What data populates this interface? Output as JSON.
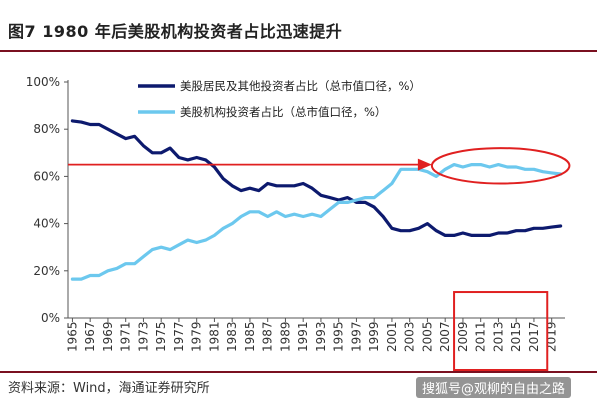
{
  "header": {
    "title": "图7  1980 年后美股机构投资者占比迅速提升"
  },
  "footer": {
    "source": "资料来源：Wind，海通证券研究所",
    "watermark": "搜狐号@观柳的自由之路"
  },
  "colors": {
    "series_retail": "#0d1a6e",
    "series_institution": "#6cc8ee",
    "annotation_red": "#e02020",
    "rule": "#7a1020"
  },
  "chart_data": {
    "type": "line",
    "title": "",
    "xlabel": "",
    "ylabel": "",
    "ylim": [
      0,
      100
    ],
    "y_ticks": [
      "0%",
      "20%",
      "40%",
      "60%",
      "80%",
      "100%"
    ],
    "y_tick_values": [
      0,
      20,
      40,
      60,
      80,
      100
    ],
    "x_tick_labels": [
      "1965",
      "1967",
      "1969",
      "1971",
      "1973",
      "1975",
      "1977",
      "1979",
      "1981",
      "1983",
      "1985",
      "1987",
      "1989",
      "1991",
      "1993",
      "1995",
      "1997",
      "1999",
      "2001",
      "2003",
      "2005",
      "2007",
      "2009",
      "2011",
      "2013",
      "2015",
      "2017",
      "2019"
    ],
    "x_tick_values": [
      1965,
      1967,
      1969,
      1971,
      1973,
      1975,
      1977,
      1979,
      1981,
      1983,
      1985,
      1987,
      1989,
      1991,
      1993,
      1995,
      1997,
      1999,
      2001,
      2003,
      2005,
      2007,
      2009,
      2011,
      2013,
      2015,
      2017,
      2019
    ],
    "xlim": [
      1964.5,
      2020.5
    ],
    "legend_position": "top-center",
    "grid": false,
    "series": [
      {
        "name": "美股居民及其他投资者占比（总市值口径，%）",
        "color": "#0d1a6e",
        "x": [
          1965,
          1966,
          1967,
          1968,
          1969,
          1970,
          1971,
          1972,
          1973,
          1974,
          1975,
          1976,
          1977,
          1978,
          1979,
          1980,
          1981,
          1982,
          1983,
          1984,
          1985,
          1986,
          1987,
          1988,
          1989,
          1990,
          1991,
          1992,
          1993,
          1994,
          1995,
          1996,
          1997,
          1998,
          1999,
          2000,
          2001,
          2002,
          2003,
          2004,
          2005,
          2006,
          2007,
          2008,
          2009,
          2010,
          2011,
          2012,
          2013,
          2014,
          2015,
          2016,
          2017,
          2018,
          2019,
          2020
        ],
        "values": [
          83.5,
          83,
          82,
          82,
          80,
          78,
          76,
          77,
          73,
          70,
          70,
          72,
          68,
          67,
          68,
          67,
          64,
          59,
          56,
          54,
          55,
          54,
          57,
          56,
          56,
          56,
          57,
          55,
          52,
          51,
          50,
          51,
          49,
          49,
          47,
          43,
          38,
          37,
          37,
          38,
          40,
          37,
          35,
          35,
          36,
          35,
          35,
          35,
          36,
          36,
          37,
          37,
          38,
          38,
          38.5,
          39
        ]
      },
      {
        "name": "美股机构投资者占比（总市值口径，%）",
        "color": "#6cc8ee",
        "x": [
          1965,
          1966,
          1967,
          1968,
          1969,
          1970,
          1971,
          1972,
          1973,
          1974,
          1975,
          1976,
          1977,
          1978,
          1979,
          1980,
          1981,
          1982,
          1983,
          1984,
          1985,
          1986,
          1987,
          1988,
          1989,
          1990,
          1991,
          1992,
          1993,
          1994,
          1995,
          1996,
          1997,
          1998,
          1999,
          2000,
          2001,
          2002,
          2003,
          2004,
          2005,
          2006,
          2007,
          2008,
          2009,
          2010,
          2011,
          2012,
          2013,
          2014,
          2015,
          2016,
          2017,
          2018,
          2019,
          2020
        ],
        "values": [
          16.5,
          16.5,
          18,
          18,
          20,
          21,
          23,
          23,
          26,
          29,
          30,
          29,
          31,
          33,
          32,
          33,
          35,
          38,
          40,
          43,
          45,
          45,
          43,
          45,
          43,
          44,
          43,
          44,
          43,
          46,
          49,
          49,
          50,
          51,
          51,
          54,
          57,
          63,
          63,
          63,
          62,
          60,
          63,
          65,
          64,
          65,
          65,
          64,
          65,
          64,
          64,
          63,
          63,
          62,
          61.5,
          61
        ]
      }
    ],
    "annotations": [
      {
        "type": "arrow",
        "from": [
          1964.5,
          65
        ],
        "to": [
          2005.5,
          65
        ]
      },
      {
        "type": "ellipse",
        "x_range": [
          2005.5,
          2021
        ],
        "y_range": [
          57,
          72
        ]
      },
      {
        "type": "rectangle",
        "x_range": [
          2008,
          2018.5
        ],
        "y_range": [
          0,
          11
        ]
      }
    ]
  }
}
